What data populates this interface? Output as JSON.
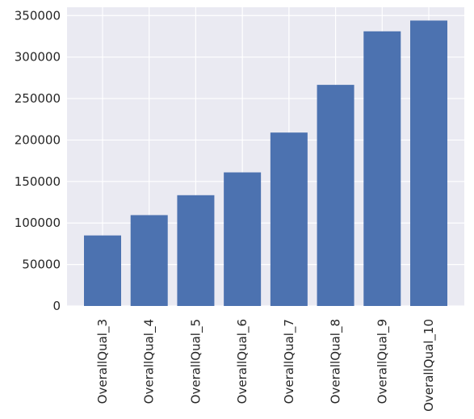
{
  "chart_data": {
    "type": "bar",
    "title": "",
    "xlabel": "",
    "ylabel": "",
    "categories": [
      "OverallQual_3",
      "OverallQual_4",
      "OverallQual_5",
      "OverallQual_6",
      "OverallQual_7",
      "OverallQual_8",
      "OverallQual_9",
      "OverallQual_10"
    ],
    "values": [
      85000,
      109500,
      133500,
      161000,
      209000,
      266500,
      331000,
      344000
    ],
    "ylim": [
      0,
      360000
    ],
    "yticks": [
      0,
      50000,
      100000,
      150000,
      200000,
      250000,
      300000,
      350000
    ],
    "ytick_labels": [
      "0",
      "50000",
      "100000",
      "150000",
      "200000",
      "250000",
      "300000",
      "350000"
    ],
    "grid": true,
    "colors": {
      "bar": "#4c72b0",
      "background": "#eaeaf2",
      "grid": "#ffffff",
      "text": "#262626"
    }
  }
}
